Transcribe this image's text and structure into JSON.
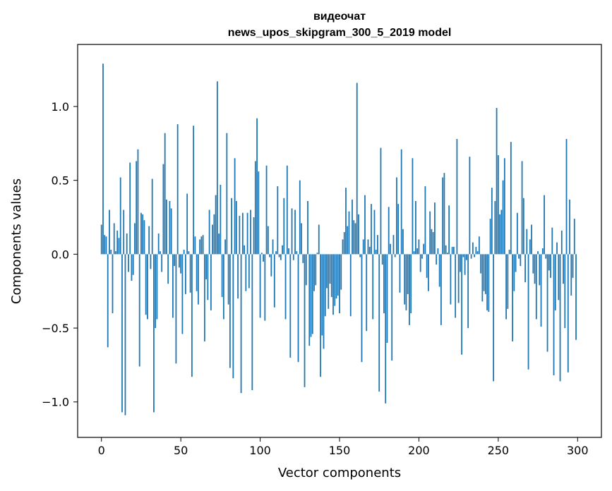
{
  "chart_data": {
    "type": "bar",
    "title": "видеочат",
    "subtitle": "news_upos_skipgram_300_5_2019 model",
    "xlabel": "Vector components",
    "ylabel": "Components values",
    "xlim": [
      -15,
      315
    ],
    "ylim": [
      -1.24,
      1.42
    ],
    "xticks": [
      0,
      50,
      100,
      150,
      200,
      250,
      300
    ],
    "xtick_labels": [
      "0",
      "50",
      "100",
      "150",
      "200",
      "250",
      "300"
    ],
    "yticks": [
      -1.0,
      -0.5,
      0.0,
      0.5,
      1.0
    ],
    "ytick_labels": [
      "−1.0",
      "−0.5",
      "0.0",
      "0.5",
      "1.0"
    ],
    "grid": false,
    "bar_color": "#1f77b4",
    "values": [
      0.2,
      1.29,
      0.13,
      0.12,
      -0.63,
      0.3,
      0.03,
      -0.4,
      0.21,
      0.02,
      0.16,
      0.11,
      0.52,
      -1.07,
      0.3,
      -1.09,
      0.14,
      -0.12,
      0.62,
      -0.18,
      -0.14,
      0.21,
      0.63,
      0.71,
      -0.76,
      0.28,
      0.27,
      0.23,
      -0.41,
      -0.44,
      0.19,
      -0.1,
      0.51,
      -1.07,
      -0.5,
      -0.44,
      0.14,
      0.02,
      -0.12,
      0.61,
      0.82,
      0.37,
      -0.2,
      0.36,
      0.31,
      -0.43,
      -0.08,
      -0.74,
      0.88,
      -0.09,
      -0.13,
      -0.54,
      0.03,
      -0.27,
      0.41,
      0.02,
      -0.26,
      -0.83,
      0.87,
      0.12,
      -0.25,
      -0.34,
      0.1,
      0.12,
      0.13,
      -0.59,
      -0.17,
      -0.31,
      0.3,
      -0.38,
      0.2,
      0.27,
      0.4,
      1.17,
      0.14,
      0.47,
      -0.29,
      -0.44,
      0.1,
      0.82,
      -0.34,
      -0.77,
      0.38,
      -0.84,
      0.65,
      0.36,
      -0.3,
      0.26,
      -0.94,
      0.28,
      0.06,
      -0.25,
      0.28,
      -0.23,
      0.3,
      -0.92,
      0.25,
      0.63,
      0.92,
      0.56,
      -0.43,
      0.01,
      -0.05,
      -0.45,
      0.6,
      0.19,
      -0.02,
      -0.15,
      0.1,
      -0.36,
      0.02,
      0.46,
      -0.02,
      -0.04,
      0.06,
      0.38,
      -0.44,
      0.6,
      0.04,
      -0.7,
      0.31,
      -0.04,
      0.3,
      0.02,
      -0.73,
      0.5,
      0.21,
      -0.06,
      -0.9,
      -0.21,
      0.36,
      -0.62,
      -0.56,
      -0.54,
      -0.25,
      -0.21,
      0.01,
      0.2,
      -0.83,
      -0.55,
      -0.64,
      -0.42,
      -0.23,
      -0.37,
      -0.2,
      -0.29,
      -0.41,
      -0.35,
      -0.3,
      -0.28,
      -0.4,
      -0.24,
      0.1,
      0.15,
      0.45,
      0.19,
      0.29,
      -0.42,
      0.37,
      0.23,
      0.21,
      1.16,
      0.27,
      -0.02,
      -0.73,
      0.1,
      0.4,
      -0.52,
      0.1,
      0.05,
      0.34,
      -0.44,
      0.3,
      0.03,
      0.13,
      -0.93,
      0.72,
      -0.07,
      -0.4,
      -1.01,
      -0.6,
      0.32,
      0.07,
      -0.72,
      0.13,
      -0.02,
      0.52,
      0.34,
      -0.26,
      0.71,
      0.17,
      -0.34,
      -0.38,
      -0.27,
      -0.48,
      -0.4,
      0.65,
      0.02,
      0.36,
      0.04,
      0.1,
      -0.12,
      -0.03,
      0.07,
      0.46,
      -0.16,
      -0.25,
      0.29,
      0.17,
      0.15,
      0.35,
      -0.07,
      0.04,
      -0.22,
      -0.48,
      0.52,
      0.55,
      0.06,
      0.01,
      0.33,
      -0.34,
      0.05,
      0.05,
      -0.43,
      0.78,
      -0.33,
      -0.12,
      -0.68,
      -0.02,
      -0.14,
      -0.04,
      -0.5,
      0.66,
      -0.03,
      0.08,
      -0.02,
      0.05,
      0.02,
      0.12,
      -0.13,
      -0.32,
      -0.25,
      -0.27,
      -0.38,
      -0.39,
      0.24,
      0.45,
      -0.86,
      0.36,
      0.99,
      0.67,
      0.27,
      0.3,
      0.5,
      0.65,
      -0.44,
      -0.37,
      0.03,
      0.76,
      -0.59,
      -0.25,
      -0.12,
      0.28,
      -0.03,
      -0.08,
      0.63,
      0.38,
      -0.19,
      0.17,
      -0.78,
      0.1,
      0.2,
      -0.13,
      -0.2,
      -0.44,
      0.02,
      -0.21,
      -0.49,
      0.04,
      0.4,
      -0.03,
      -0.66,
      -0.11,
      -0.16,
      0.18,
      -0.82,
      -0.38,
      0.08,
      -0.31,
      -0.86,
      0.16,
      -0.2,
      -0.5,
      0.78,
      -0.8,
      0.37,
      -0.28,
      -0.16,
      0.24,
      -0.58
    ]
  }
}
